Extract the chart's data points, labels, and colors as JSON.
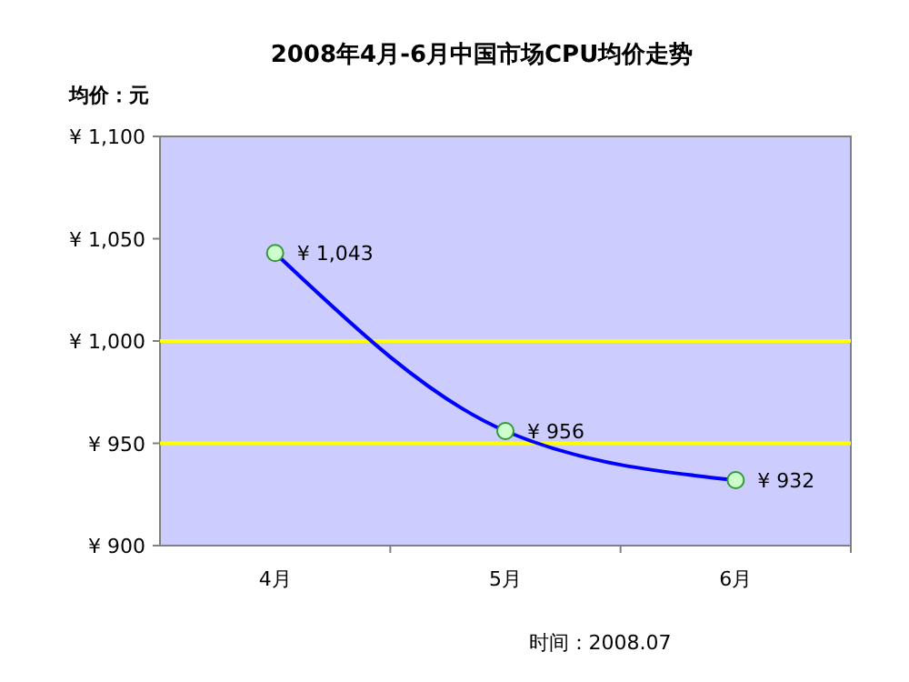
{
  "chart_data": {
    "type": "line",
    "title": "2008年4月-6月中国市场CPU均价走势",
    "ylabel": "均价：元",
    "categories": [
      "4月",
      "5月",
      "6月"
    ],
    "series": [
      {
        "color": "#0000ff",
        "values": [
          1043,
          956,
          932
        ]
      }
    ],
    "value_labels": [
      "¥ 1,043",
      "¥ 956",
      "¥ 932"
    ],
    "ylim": [
      900,
      1100
    ],
    "yticks": [
      {
        "value": 900,
        "label": "¥ 900"
      },
      {
        "value": 950,
        "label": "¥ 950"
      },
      {
        "value": 1000,
        "label": "¥ 1,000"
      },
      {
        "value": 1050,
        "label": "¥ 1,050"
      },
      {
        "value": 1100,
        "label": "¥ 1,100"
      }
    ],
    "ref_lines": [
      {
        "axis": "y",
        "value": 950,
        "color": "#ffff00"
      },
      {
        "axis": "y",
        "value": 1000,
        "color": "#ffff00"
      }
    ],
    "marker": "circle",
    "annotations": [
      "时间：2008.07"
    ]
  }
}
